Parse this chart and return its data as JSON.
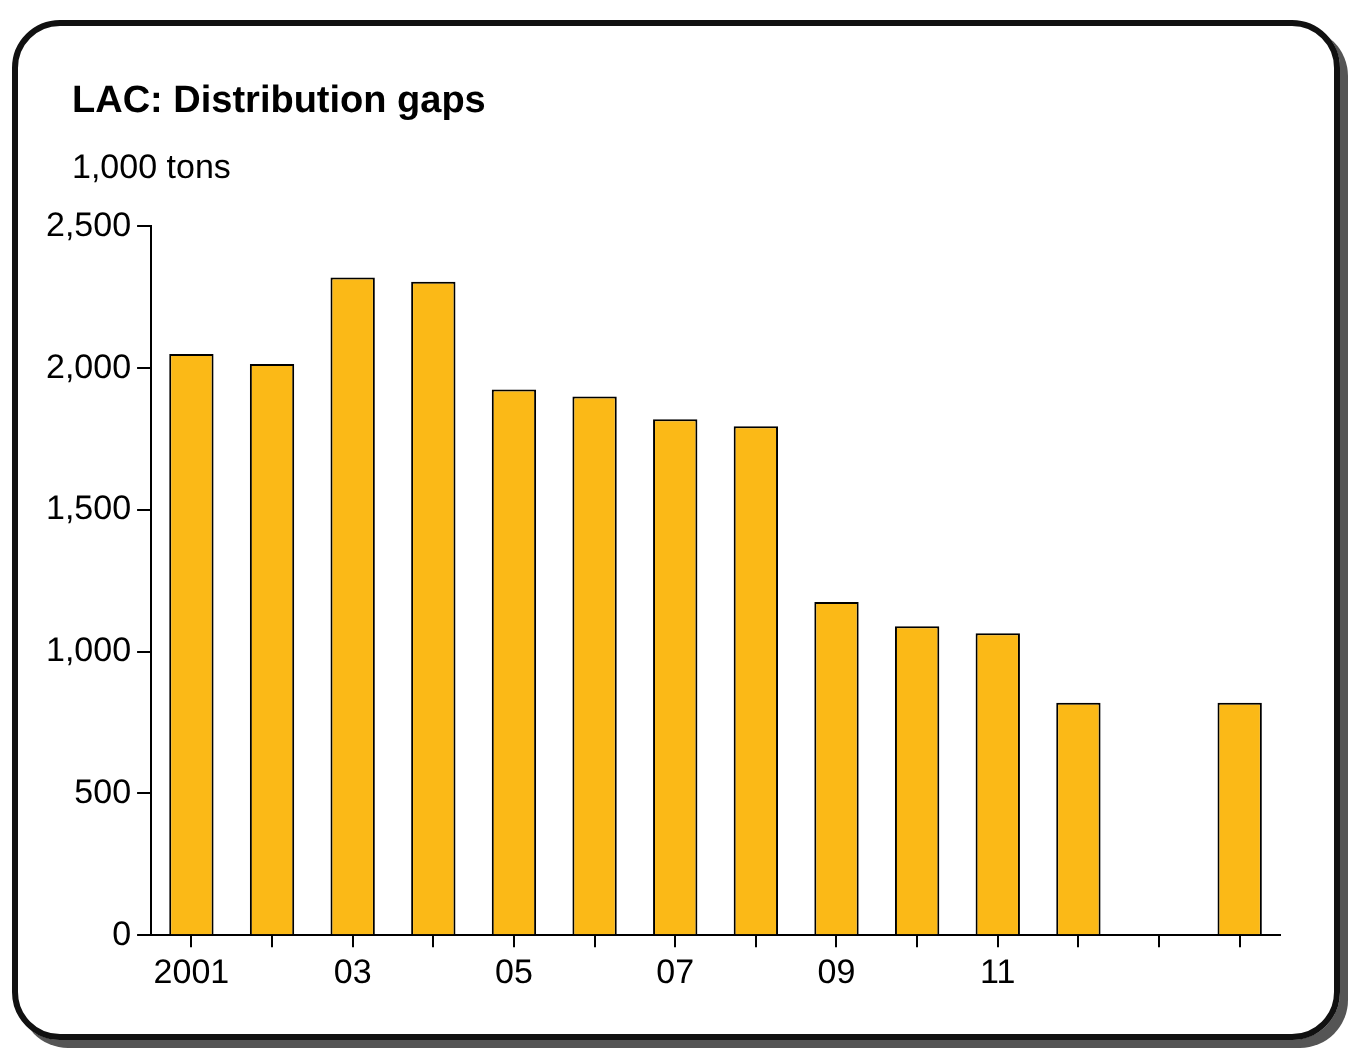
{
  "chart_data": {
    "type": "bar",
    "title": "LAC: Distribution gaps",
    "ylabel": "1,000 tons",
    "categories": [
      "2001",
      null,
      "03",
      null,
      "05",
      null,
      "07",
      null,
      "09",
      null,
      "11",
      null,
      null,
      null
    ],
    "values": [
      2050,
      2015,
      2320,
      2305,
      1925,
      1900,
      1820,
      1795,
      1175,
      1090,
      1065,
      820,
      null,
      820
    ],
    "color": "#fbb917",
    "ylim": [
      0,
      2500
    ],
    "yticks": [
      0,
      500,
      {
        "value": 1000,
        "label": "1,000"
      },
      {
        "value": 1500,
        "label": "1,500"
      },
      {
        "value": 2000,
        "label": "2,000"
      },
      {
        "value": 2500,
        "label": "2,500"
      }
    ],
    "grid": false,
    "legend": false
  }
}
